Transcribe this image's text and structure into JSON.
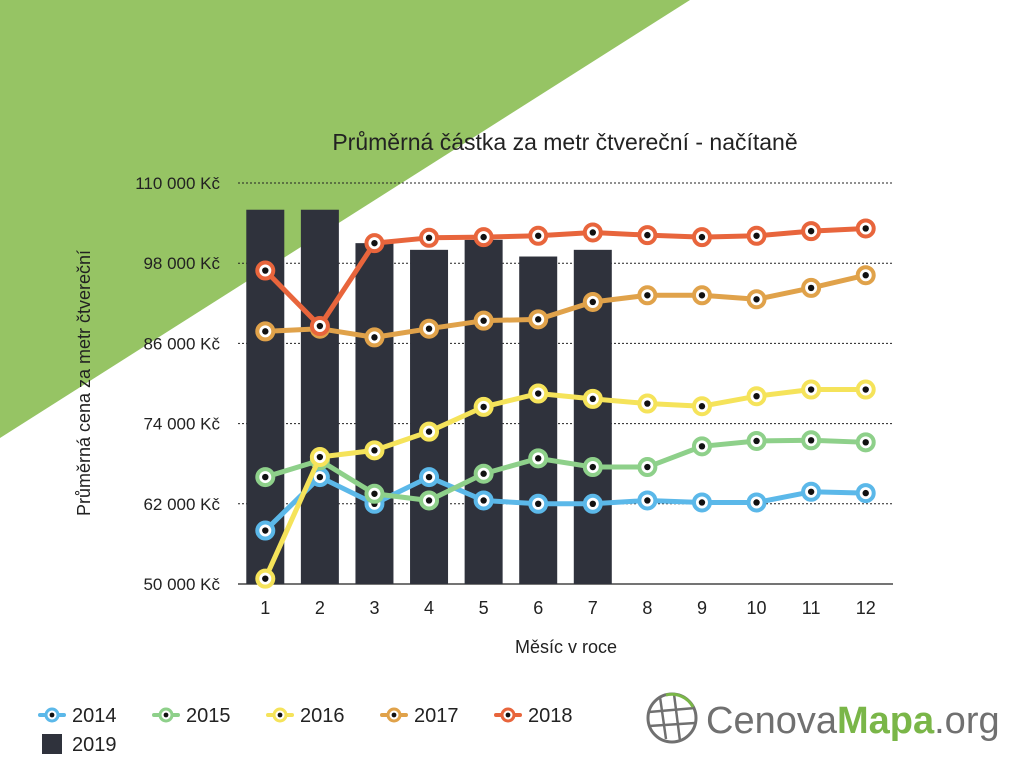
{
  "colors": {
    "background_triangle": "#96c464",
    "bar": "#2f323c",
    "grid": "#222222",
    "series_2014": "#5bb8e9",
    "series_2015": "#8ed08a",
    "series_2016": "#f5e35a",
    "series_2017": "#e0a24a",
    "series_2018": "#e8653c",
    "logo_gray": "#707070",
    "logo_green": "#7ab648"
  },
  "chart_data": {
    "type": "line",
    "title": "Průměrná částka za metr čtvereční - načítaně",
    "xlabel": "Měsíc v roce",
    "ylabel": "Průměrná cena za metr čtvereční",
    "x": [
      1,
      2,
      3,
      4,
      5,
      6,
      7,
      8,
      9,
      10,
      11,
      12
    ],
    "ylim": [
      50000,
      110000
    ],
    "yticks": [
      50000,
      62000,
      74000,
      86000,
      98000,
      110000
    ],
    "ytick_labels": [
      "50 000 Kč",
      "62 000 Kč",
      "74 000 Kč",
      "86 000 Kč",
      "98 000 Kč",
      "110 000 Kč"
    ],
    "grid": true,
    "legend_position": "bottom-left",
    "bars": {
      "name": "2019",
      "values": [
        106000,
        106000,
        101000,
        100000,
        101500,
        99000,
        100000
      ]
    },
    "series": [
      {
        "name": "2014",
        "color_key": "series_2014",
        "values": [
          58000,
          66000,
          62000,
          66000,
          62500,
          62000,
          62000,
          62500,
          62200,
          62200,
          63800,
          63600
        ]
      },
      {
        "name": "2015",
        "color_key": "series_2015",
        "values": [
          66000,
          68500,
          63500,
          62500,
          66500,
          68800,
          67500,
          67500,
          70600,
          71400,
          71500,
          71200
        ]
      },
      {
        "name": "2016",
        "color_key": "series_2016",
        "values": [
          50800,
          69000,
          70000,
          72800,
          76500,
          78500,
          77700,
          77000,
          76600,
          78100,
          79100,
          79100
        ]
      },
      {
        "name": "2017",
        "color_key": "series_2017",
        "values": [
          87800,
          88200,
          86900,
          88200,
          89400,
          89600,
          92200,
          93200,
          93200,
          92600,
          94300,
          96200
        ]
      },
      {
        "name": "2018",
        "color_key": "series_2018",
        "values": [
          96900,
          88600,
          101000,
          101800,
          101900,
          102100,
          102600,
          102200,
          101900,
          102100,
          102800,
          103200
        ]
      }
    ]
  },
  "legend": {
    "items": [
      {
        "label": "2014",
        "kind": "line",
        "color_key": "series_2014"
      },
      {
        "label": "2015",
        "kind": "line",
        "color_key": "series_2015"
      },
      {
        "label": "2016",
        "kind": "line",
        "color_key": "series_2016"
      },
      {
        "label": "2017",
        "kind": "line",
        "color_key": "series_2017"
      },
      {
        "label": "2018",
        "kind": "line",
        "color_key": "series_2018"
      },
      {
        "label": "2019",
        "kind": "bar",
        "color_key": "bar"
      }
    ]
  },
  "logo": {
    "part1": "Cenova",
    "part2": "Mapa",
    "part3": ".org",
    "icon": "globe-grid-icon"
  }
}
